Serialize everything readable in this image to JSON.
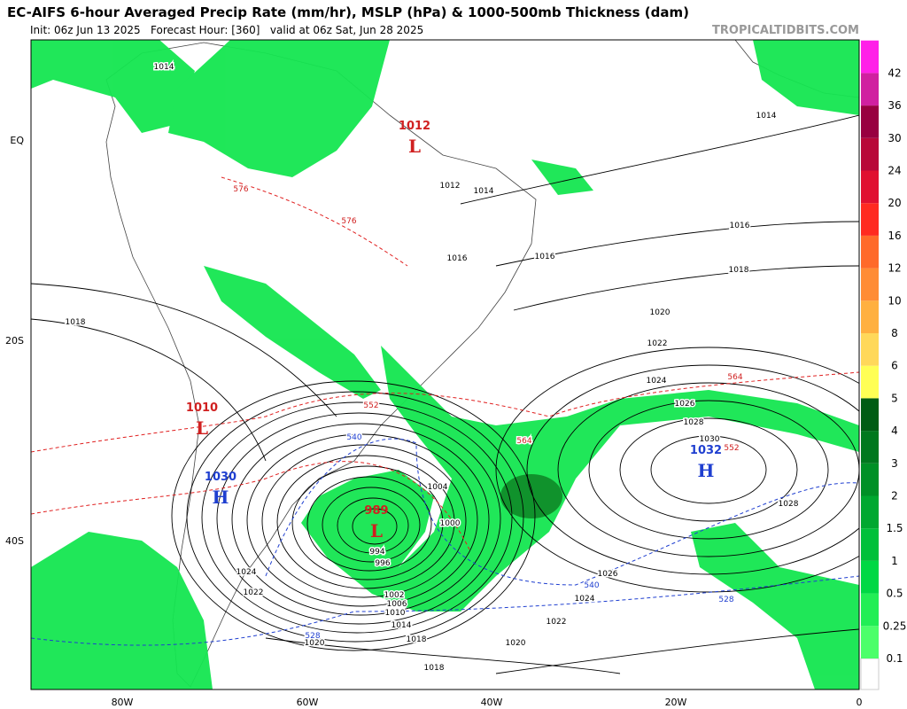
{
  "header": {
    "title": "EC-AIFS 6-hour Averaged Precip Rate (mm/hr), MSLP (hPa) & 1000-500mb Thickness (dam)",
    "subtitle": "Init: 06z Jun 13 2025   Forecast Hour: [360]   valid at 06z Sat, Jun 28 2025",
    "watermark": "TROPICALTIDBITS.COM"
  },
  "axes": {
    "lat_labels": [
      "EQ",
      "20S",
      "40S"
    ],
    "lon_labels": [
      "80W",
      "60W",
      "40W",
      "20W",
      "0"
    ]
  },
  "colorbar": {
    "labels": [
      "0.1",
      "0.25",
      "0.5",
      "1",
      "1.5",
      "2",
      "3",
      "4",
      "5",
      "6",
      "8",
      "10",
      "12",
      "16",
      "20",
      "24",
      "30",
      "36",
      "42"
    ]
  },
  "centers": [
    {
      "letter": "L",
      "value": "989"
    },
    {
      "letter": "H",
      "value": "1032"
    },
    {
      "letter": "L",
      "value": "1010"
    },
    {
      "letter": "H",
      "value": "1030"
    },
    {
      "letter": "L",
      "value": "1012"
    }
  ],
  "contour_labels": [
    "1014",
    "1014",
    "1016",
    "1016",
    "1018",
    "1018",
    "1020",
    "1022",
    "1024",
    "1026",
    "1028",
    "1030",
    "1028",
    "1004",
    "1000",
    "996",
    "994",
    "1002",
    "1006",
    "1010",
    "1014",
    "1018",
    "1020",
    "1022",
    "1024",
    "1026",
    "1018",
    "1024",
    "1022",
    "1020",
    "1012",
    "1014",
    "1016"
  ],
  "thickness_labels": [
    "576",
    "576",
    "564",
    "564",
    "552",
    "552",
    "540",
    "540",
    "528",
    "528"
  ]
}
